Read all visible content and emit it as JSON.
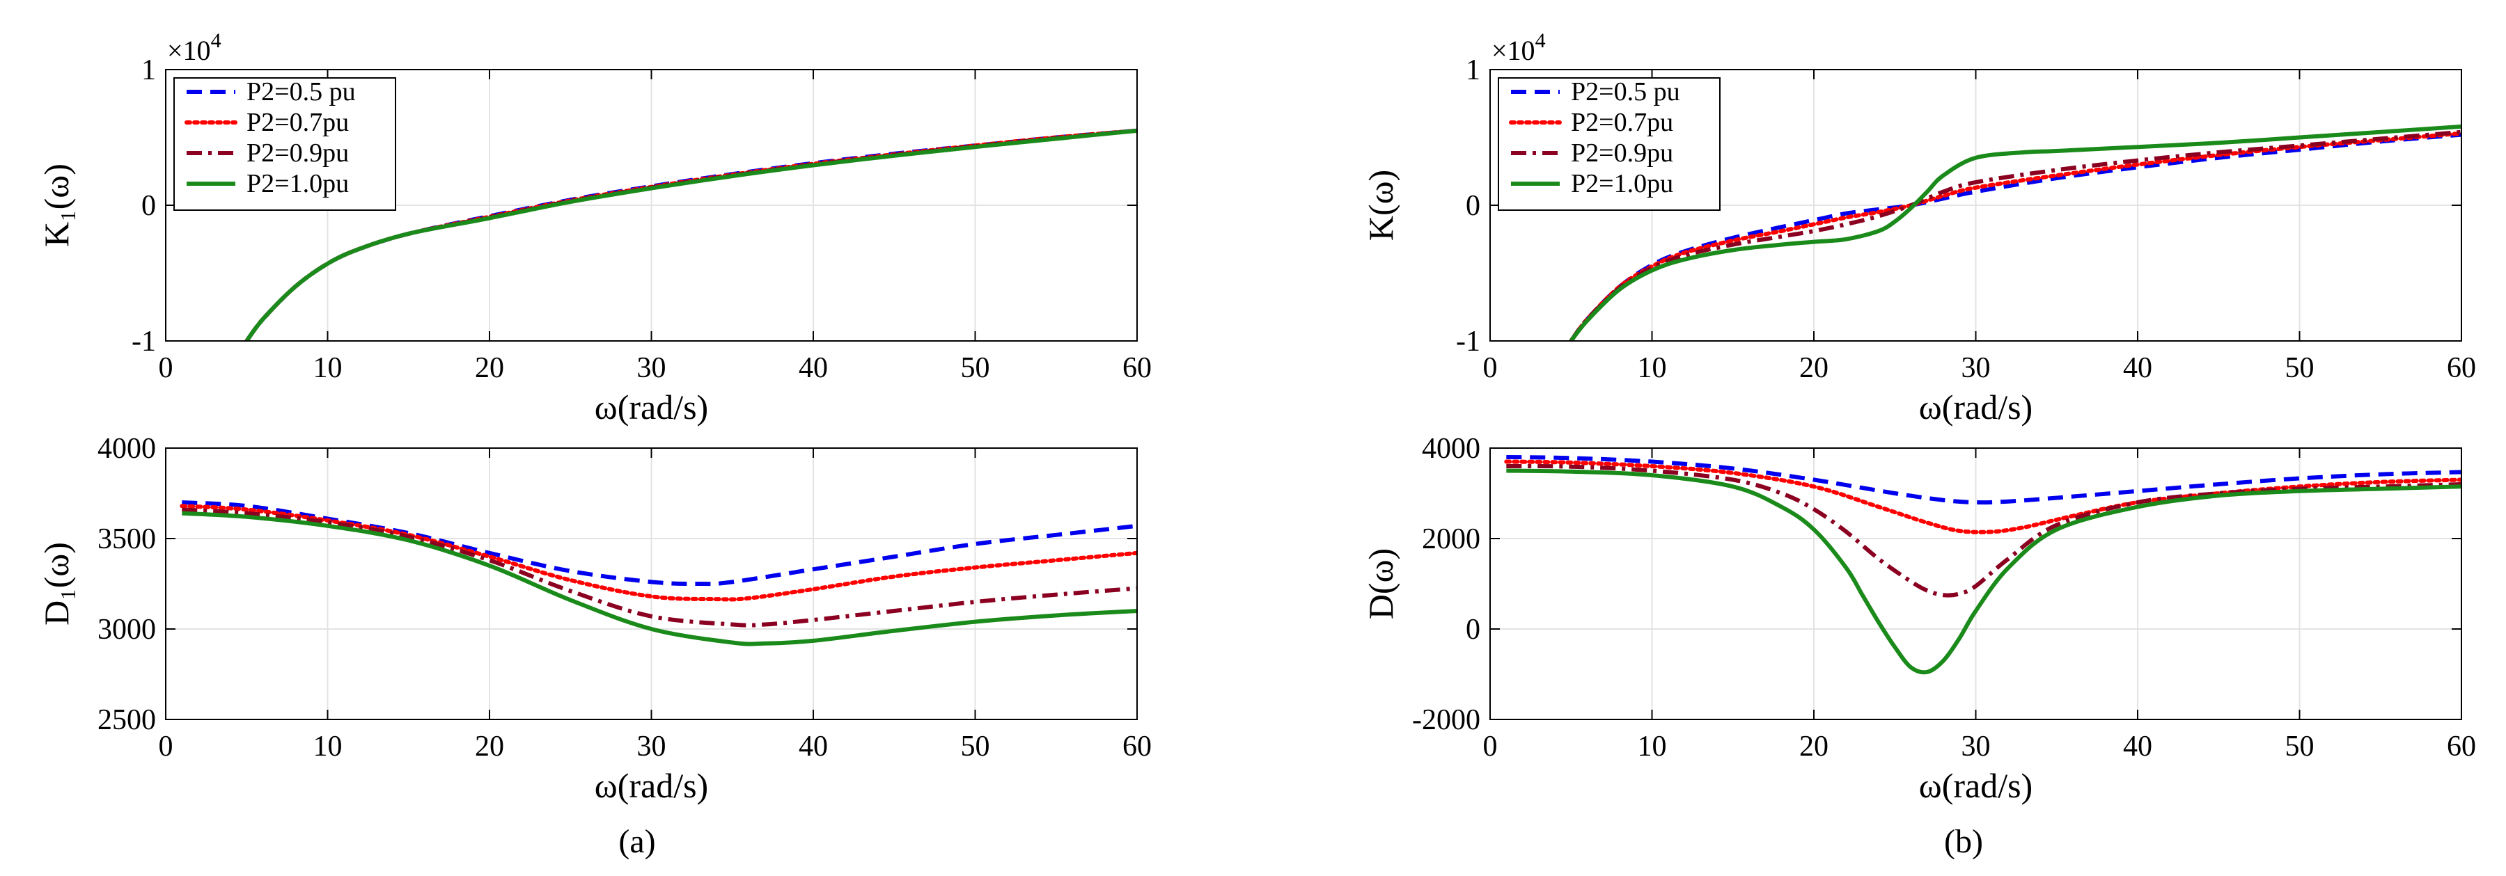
{
  "legend": {
    "entries": [
      {
        "label": "P2=0.5 pu",
        "color": "#0000ee",
        "style": "dashed"
      },
      {
        "label": "P2=0.7pu",
        "color": "#ff0000",
        "style": "dotted"
      },
      {
        "label": "P2=0.9pu",
        "color": "#8b0020",
        "style": "dashdot"
      },
      {
        "label": "P2=1.0pu",
        "color": "#1a8a1a",
        "style": "solid"
      }
    ]
  },
  "panel_labels": {
    "a": "(a)",
    "b": "(b)"
  },
  "chart_data": [
    {
      "id": "a_top",
      "type": "line",
      "title": "",
      "xlabel": "ω(rad/s)",
      "ylabel": "K₁(ω)",
      "exponent": "×10",
      "exponent_power": "4",
      "xlim": [
        0,
        60
      ],
      "ylim": [
        -1,
        1
      ],
      "xticks": [
        "0",
        "10",
        "20",
        "30",
        "40",
        "50",
        "60"
      ],
      "yticks": [
        {
          "value": -1,
          "label": "-1"
        },
        {
          "value": 0,
          "label": "0"
        },
        {
          "value": 1,
          "label": "1"
        }
      ],
      "grid": true,
      "legend": "top-left",
      "series": [
        {
          "name": "P2=0.5 pu",
          "x": [
            5,
            6,
            8,
            10,
            12,
            15,
            20,
            25,
            30,
            35,
            40,
            45,
            50,
            55,
            60
          ],
          "y": [
            -1.0,
            -0.84,
            -0.6,
            -0.43,
            -0.32,
            -0.21,
            -0.08,
            0.04,
            0.14,
            0.23,
            0.31,
            0.38,
            0.44,
            0.5,
            0.55
          ]
        },
        {
          "name": "P2=0.7pu",
          "x": [
            5,
            6,
            8,
            10,
            12,
            15,
            20,
            25,
            30,
            35,
            40,
            45,
            50,
            55,
            60
          ],
          "y": [
            -1.0,
            -0.84,
            -0.6,
            -0.43,
            -0.32,
            -0.21,
            -0.085,
            0.035,
            0.135,
            0.225,
            0.305,
            0.375,
            0.44,
            0.5,
            0.55
          ]
        },
        {
          "name": "P2=0.9pu",
          "x": [
            5,
            6,
            8,
            10,
            12,
            15,
            20,
            25,
            30,
            35,
            40,
            45,
            50,
            55,
            60
          ],
          "y": [
            -1.0,
            -0.84,
            -0.6,
            -0.43,
            -0.32,
            -0.21,
            -0.09,
            0.03,
            0.13,
            0.22,
            0.3,
            0.37,
            0.435,
            0.495,
            0.55
          ]
        },
        {
          "name": "P2=1.0pu",
          "x": [
            5,
            6,
            8,
            10,
            12,
            15,
            20,
            25,
            30,
            35,
            40,
            45,
            50,
            55,
            60
          ],
          "y": [
            -1.0,
            -0.84,
            -0.6,
            -0.43,
            -0.32,
            -0.21,
            -0.095,
            0.025,
            0.125,
            0.215,
            0.295,
            0.365,
            0.43,
            0.49,
            0.55
          ]
        }
      ]
    },
    {
      "id": "a_bottom",
      "type": "line",
      "title": "",
      "xlabel": "ω(rad/s)",
      "ylabel": "D₁(ω)",
      "xlim": [
        0,
        60
      ],
      "ylim": [
        2500,
        4000
      ],
      "xticks": [
        "0",
        "10",
        "20",
        "30",
        "40",
        "50",
        "60"
      ],
      "yticks": [
        {
          "value": 2500,
          "label": "2500"
        },
        {
          "value": 3000,
          "label": "3000"
        },
        {
          "value": 3500,
          "label": "3500"
        },
        {
          "value": 4000,
          "label": "4000"
        }
      ],
      "grid": true,
      "series": [
        {
          "name": "P2=0.5 pu",
          "x": [
            1,
            5,
            10,
            15,
            20,
            25,
            30,
            33,
            35,
            40,
            45,
            50,
            55,
            60
          ],
          "y": [
            3700,
            3680,
            3610,
            3530,
            3420,
            3320,
            3260,
            3250,
            3260,
            3330,
            3400,
            3470,
            3520,
            3570
          ]
        },
        {
          "name": "P2=0.7pu",
          "x": [
            1,
            5,
            10,
            15,
            20,
            25,
            30,
            34,
            36,
            40,
            45,
            50,
            55,
            60
          ],
          "y": [
            3680,
            3660,
            3600,
            3520,
            3400,
            3270,
            3180,
            3165,
            3170,
            3220,
            3290,
            3340,
            3380,
            3420
          ]
        },
        {
          "name": "P2=0.9pu",
          "x": [
            1,
            5,
            10,
            15,
            20,
            25,
            30,
            35,
            37,
            40,
            45,
            50,
            55,
            60
          ],
          "y": [
            3660,
            3640,
            3590,
            3510,
            3380,
            3210,
            3070,
            3025,
            3025,
            3050,
            3100,
            3150,
            3190,
            3225
          ]
        },
        {
          "name": "P2=1.0pu",
          "x": [
            1,
            5,
            10,
            15,
            20,
            25,
            30,
            35,
            37,
            40,
            45,
            50,
            55,
            60
          ],
          "y": [
            3640,
            3620,
            3570,
            3490,
            3350,
            3160,
            3000,
            2925,
            2920,
            2935,
            2990,
            3040,
            3075,
            3100
          ]
        }
      ]
    },
    {
      "id": "b_top",
      "type": "line",
      "title": "",
      "xlabel": "ω(rad/s)",
      "ylabel": "K(ω)",
      "exponent": "×10",
      "exponent_power": "4",
      "xlim": [
        0,
        60
      ],
      "ylim": [
        -1,
        1
      ],
      "xticks": [
        "0",
        "10",
        "20",
        "30",
        "40",
        "50",
        "60"
      ],
      "yticks": [
        {
          "value": -1,
          "label": "-1"
        },
        {
          "value": 0,
          "label": "0"
        },
        {
          "value": 1,
          "label": "1"
        }
      ],
      "grid": true,
      "legend": "top-left",
      "series": [
        {
          "name": "P2=0.5 pu",
          "x": [
            5,
            6,
            8,
            10,
            12,
            15,
            18,
            20,
            22,
            24,
            26,
            28,
            30,
            35,
            40,
            45,
            50,
            55,
            60
          ],
          "y": [
            -1.0,
            -0.84,
            -0.6,
            -0.44,
            -0.34,
            -0.24,
            -0.16,
            -0.11,
            -0.06,
            -0.03,
            0.0,
            0.05,
            0.1,
            0.2,
            0.28,
            0.35,
            0.41,
            0.47,
            0.52
          ]
        },
        {
          "name": "P2=0.7pu",
          "x": [
            5,
            6,
            8,
            10,
            12,
            15,
            18,
            20,
            22,
            24,
            26,
            28,
            30,
            35,
            40,
            45,
            50,
            55,
            60
          ],
          "y": [
            -1.0,
            -0.84,
            -0.6,
            -0.45,
            -0.35,
            -0.26,
            -0.19,
            -0.14,
            -0.09,
            -0.05,
            0.0,
            0.07,
            0.13,
            0.22,
            0.3,
            0.37,
            0.43,
            0.48,
            0.53
          ]
        },
        {
          "name": "P2=0.9pu",
          "x": [
            5,
            6,
            8,
            10,
            12,
            15,
            18,
            20,
            22,
            24,
            26,
            28,
            30,
            35,
            40,
            45,
            50,
            55,
            60
          ],
          "y": [
            -1.0,
            -0.84,
            -0.61,
            -0.46,
            -0.37,
            -0.29,
            -0.23,
            -0.19,
            -0.14,
            -0.08,
            0.0,
            0.1,
            0.17,
            0.26,
            0.33,
            0.39,
            0.44,
            0.49,
            0.54
          ]
        },
        {
          "name": "P2=1.0pu",
          "x": [
            5,
            6,
            8,
            10,
            12,
            15,
            18,
            20,
            22,
            24,
            25,
            26,
            27,
            28,
            30,
            33,
            35,
            40,
            45,
            50,
            55,
            60
          ],
          "y": [
            -1.0,
            -0.85,
            -0.62,
            -0.48,
            -0.4,
            -0.33,
            -0.29,
            -0.27,
            -0.25,
            -0.19,
            -0.12,
            -0.02,
            0.1,
            0.22,
            0.35,
            0.39,
            0.4,
            0.43,
            0.46,
            0.5,
            0.54,
            0.58
          ]
        }
      ]
    },
    {
      "id": "b_bottom",
      "type": "line",
      "title": "",
      "xlabel": "ω(rad/s)",
      "ylabel": "D(ω)",
      "xlim": [
        0,
        60
      ],
      "ylim": [
        -2000,
        4000
      ],
      "xticks": [
        "0",
        "10",
        "20",
        "30",
        "40",
        "50",
        "60"
      ],
      "yticks": [
        {
          "value": -2000,
          "label": "-2000"
        },
        {
          "value": 0,
          "label": "0"
        },
        {
          "value": 2000,
          "label": "2000"
        },
        {
          "value": 4000,
          "label": "4000"
        }
      ],
      "grid": true,
      "series": [
        {
          "name": "P2=0.5 pu",
          "x": [
            1,
            5,
            10,
            15,
            20,
            25,
            28,
            30,
            32,
            35,
            40,
            45,
            50,
            55,
            60
          ],
          "y": [
            3800,
            3780,
            3700,
            3550,
            3300,
            3000,
            2850,
            2800,
            2820,
            2900,
            3050,
            3200,
            3330,
            3420,
            3470
          ]
        },
        {
          "name": "P2=0.7pu",
          "x": [
            1,
            5,
            10,
            15,
            20,
            24,
            27,
            29,
            31,
            33,
            36,
            40,
            45,
            50,
            55,
            60
          ],
          "y": [
            3700,
            3680,
            3600,
            3450,
            3150,
            2700,
            2350,
            2170,
            2150,
            2250,
            2500,
            2800,
            3000,
            3150,
            3250,
            3300
          ]
        },
        {
          "name": "P2=0.9pu",
          "x": [
            1,
            5,
            10,
            15,
            18,
            20,
            22,
            24,
            26,
            27,
            28,
            29,
            30,
            32,
            35,
            40,
            45,
            50,
            55,
            60
          ],
          "y": [
            3600,
            3590,
            3500,
            3300,
            3000,
            2650,
            2150,
            1550,
            1050,
            850,
            750,
            780,
            950,
            1550,
            2300,
            2800,
            3000,
            3100,
            3150,
            3200
          ]
        },
        {
          "name": "P2=1.0pu",
          "x": [
            1,
            5,
            10,
            15,
            18,
            20,
            22,
            23,
            24,
            25,
            26,
            27,
            28,
            29,
            30,
            32,
            35,
            40,
            45,
            50,
            55,
            60
          ],
          "y": [
            3500,
            3480,
            3400,
            3150,
            2700,
            2200,
            1350,
            750,
            150,
            -400,
            -850,
            -950,
            -700,
            -200,
            400,
            1350,
            2200,
            2700,
            2950,
            3050,
            3100,
            3150
          ]
        }
      ]
    }
  ]
}
